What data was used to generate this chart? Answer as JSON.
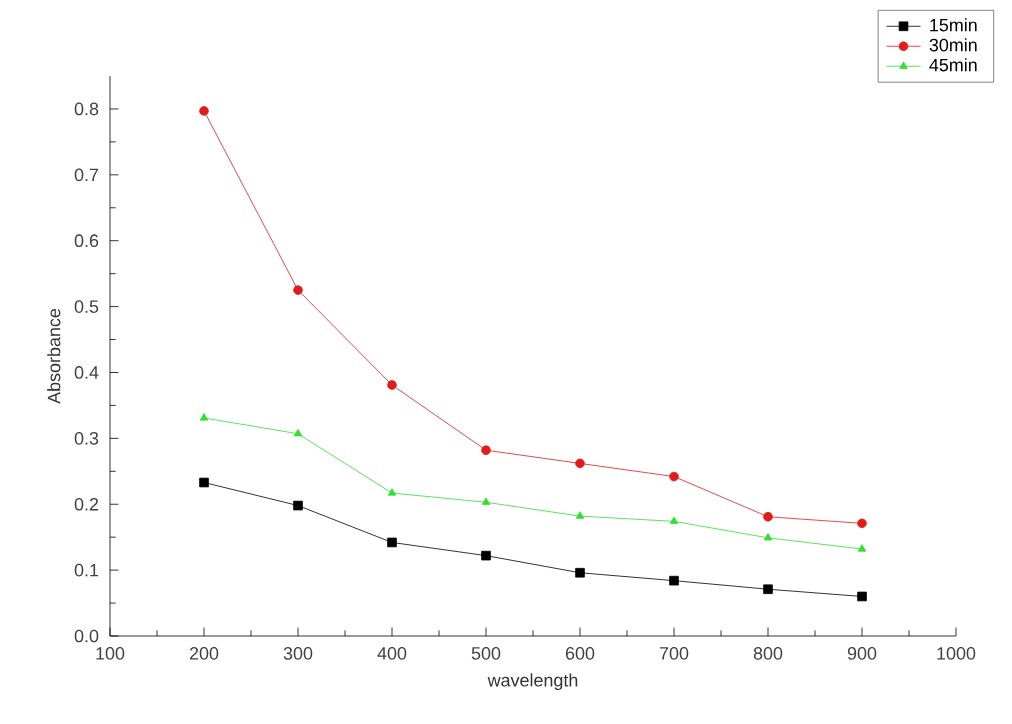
{
  "chart_data": {
    "type": "line",
    "xlabel": "wavelength",
    "ylabel": "Absorbance",
    "x": [
      200,
      300,
      400,
      500,
      600,
      700,
      800,
      900
    ],
    "series": [
      {
        "name": "15min",
        "color": "#000000",
        "marker": "square",
        "values": [
          0.233,
          0.198,
          0.142,
          0.122,
          0.096,
          0.084,
          0.071,
          0.06
        ]
      },
      {
        "name": "30min",
        "color": "#e01c1c",
        "marker": "circle",
        "values": [
          0.797,
          0.525,
          0.381,
          0.282,
          0.262,
          0.242,
          0.181,
          0.171
        ]
      },
      {
        "name": "45min",
        "color": "#33dd33",
        "marker": "triangle",
        "values": [
          0.331,
          0.307,
          0.217,
          0.203,
          0.182,
          0.174,
          0.149,
          0.132
        ]
      }
    ],
    "xlim": [
      100,
      1000
    ],
    "xticks": [
      100,
      200,
      300,
      400,
      500,
      600,
      700,
      800,
      900,
      1000
    ],
    "ylim": [
      0,
      0.85
    ],
    "yticks": [
      {
        "value": 0,
        "label": "0.0"
      },
      0.1,
      0.2,
      0.3,
      0.4,
      0.5,
      0.6,
      0.7,
      0.8
    ],
    "legend": "top right",
    "grid": false,
    "line_style": "solid"
  }
}
